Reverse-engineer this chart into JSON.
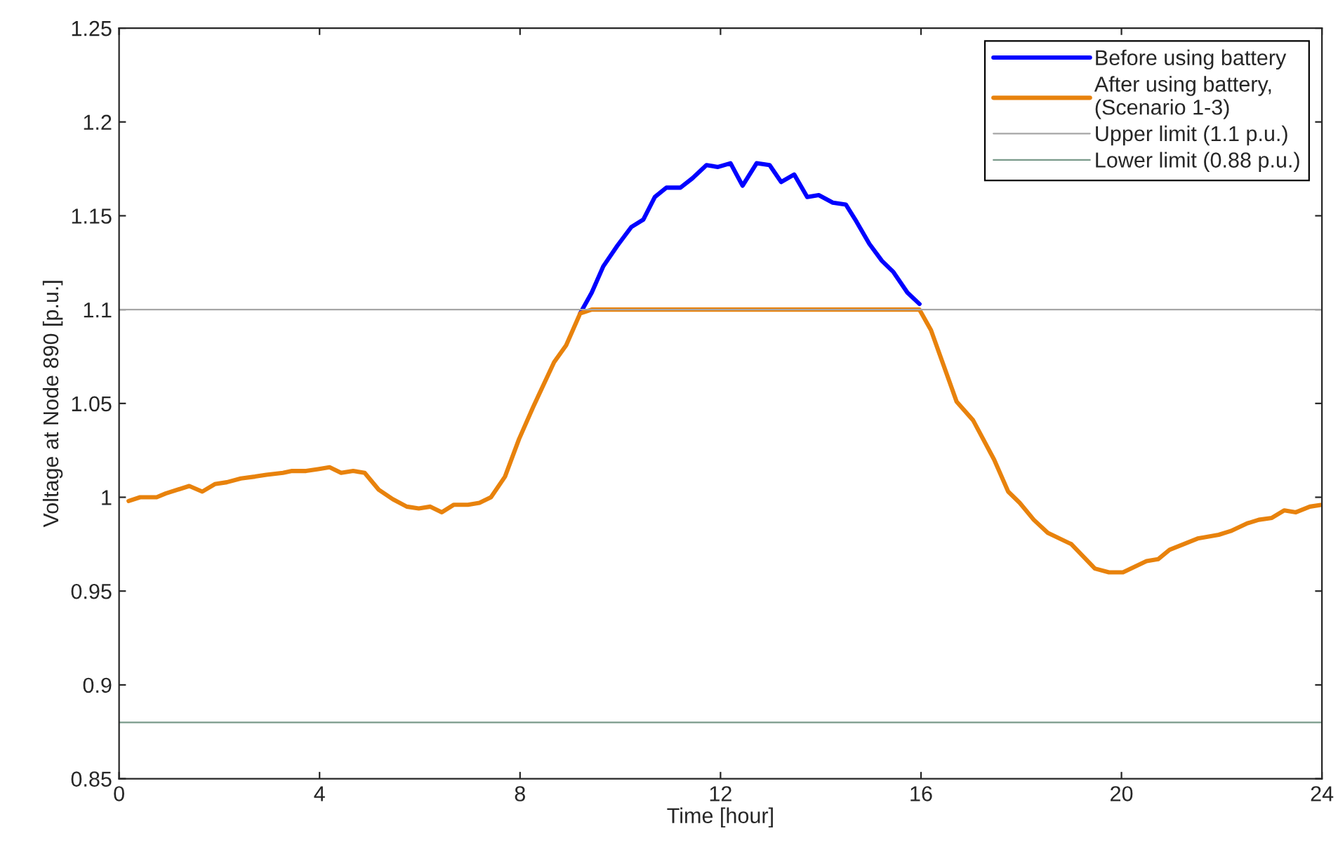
{
  "chart_data": {
    "type": "line",
    "xlabel": "Time [hour]",
    "ylabel": "Voltage at Node 890 [p.u.]",
    "xlim": [
      0,
      24
    ],
    "ylim": [
      0.85,
      1.25
    ],
    "xticks": [
      0,
      4,
      8,
      12,
      16,
      20,
      24
    ],
    "yticks": [
      0.85,
      0.9,
      0.95,
      1,
      1.05,
      1.1,
      1.15,
      1.2,
      1.25
    ],
    "grid": false,
    "legend": "top right",
    "marker": "none",
    "series": [
      {
        "name": "Before using battery",
        "color": "#0000ff",
        "line_style": "solid",
        "x": [
          9.2,
          9.43,
          9.66,
          9.94,
          10.22,
          10.46,
          10.69,
          10.92,
          11.2,
          11.44,
          11.72,
          11.95,
          12.2,
          12.44,
          12.72,
          12.98,
          13.21,
          13.47,
          13.73,
          13.96,
          14.24,
          14.5,
          14.71,
          14.97,
          15.22,
          15.45,
          15.73,
          15.97
        ],
        "values": [
          1.098,
          1.109,
          1.123,
          1.134,
          1.144,
          1.148,
          1.16,
          1.165,
          1.165,
          1.17,
          1.177,
          1.176,
          1.178,
          1.166,
          1.178,
          1.177,
          1.168,
          1.172,
          1.16,
          1.161,
          1.157,
          1.156,
          1.147,
          1.135,
          1.126,
          1.12,
          1.109,
          1.103
        ]
      },
      {
        "name": "After using battery,\n(Scenario 1-3)",
        "color": "#e8820c",
        "line_style": "solid",
        "x": [
          0.19,
          0.42,
          0.75,
          0.93,
          1.4,
          1.66,
          1.91,
          2.15,
          2.43,
          2.71,
          2.94,
          3.27,
          3.45,
          3.73,
          3.97,
          4.2,
          4.43,
          4.67,
          4.9,
          5.18,
          5.46,
          5.74,
          5.98,
          6.21,
          6.44,
          6.68,
          6.96,
          7.19,
          7.42,
          7.7,
          7.98,
          8.26,
          8.68,
          8.92,
          9.2,
          9.43,
          15.97,
          16.2,
          16.71,
          17.04,
          17.46,
          17.74,
          17.97,
          18.25,
          18.53,
          19.0,
          19.47,
          19.75,
          20.03,
          20.5,
          20.73,
          20.96,
          21.24,
          21.52,
          21.94,
          22.18,
          22.5,
          22.74,
          23.0,
          23.25,
          23.48,
          23.76,
          24.0
        ],
        "values": [
          0.998,
          1.0,
          1.0,
          1.002,
          1.006,
          1.003,
          1.007,
          1.008,
          1.01,
          1.011,
          1.012,
          1.013,
          1.014,
          1.014,
          1.015,
          1.016,
          1.013,
          1.014,
          1.013,
          1.004,
          0.999,
          0.995,
          0.994,
          0.995,
          0.992,
          0.996,
          0.996,
          0.997,
          1.0,
          1.011,
          1.031,
          1.048,
          1.072,
          1.081,
          1.098,
          1.1,
          1.1,
          1.089,
          1.051,
          1.041,
          1.02,
          1.003,
          0.997,
          0.988,
          0.981,
          0.975,
          0.962,
          0.96,
          0.96,
          0.966,
          0.967,
          0.972,
          0.975,
          0.978,
          0.98,
          0.982,
          0.986,
          0.988,
          0.989,
          0.993,
          0.992,
          0.995,
          0.996
        ]
      },
      {
        "name": "Upper limit (1.1 p.u.)",
        "color": "#a6a6a6",
        "line_style": "solid",
        "x": [
          0,
          24
        ],
        "values": [
          1.1,
          1.1
        ]
      },
      {
        "name": "Lower limit (0.88 p.u.)",
        "color": "#7a9a8a",
        "line_style": "solid",
        "x": [
          0,
          24
        ],
        "values": [
          0.88,
          0.88
        ]
      }
    ]
  }
}
